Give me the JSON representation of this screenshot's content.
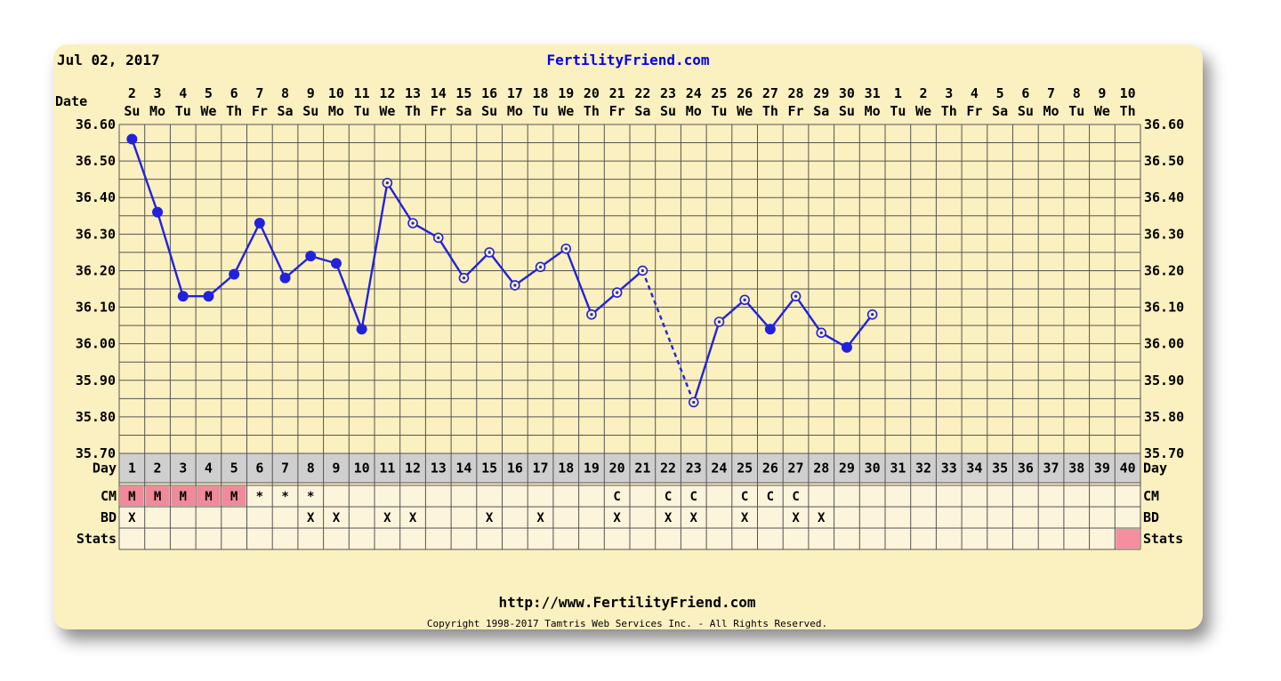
{
  "header": {
    "date": "Jul 02, 2017",
    "site": "FertilityFriend.com"
  },
  "footer": {
    "url": "http://www.FertilityFriend.com",
    "copyright": "Copyright 1998-2017 Tamtris Web Services Inc. - All Rights Reserved."
  },
  "colors": {
    "background": "#fbf0bf",
    "plot": "#fbf0bf",
    "grid": "#555555",
    "line": "#2222dd",
    "day_row": "#cfcfcf",
    "menses_cell": "#f08a9a",
    "stats_highlight": "#f58fa0",
    "row_cell": "#fdf4dc",
    "title": "#0000ee"
  },
  "chart_data": {
    "type": "line",
    "title": "",
    "row_labels": {
      "date": "Date",
      "day": "Day",
      "cm": "CM",
      "bd": "BD",
      "stats": "Stats"
    },
    "ylim": [
      35.7,
      36.6
    ],
    "yticks": [
      "36.60",
      "36.50",
      "36.40",
      "36.30",
      "36.20",
      "36.10",
      "36.00",
      "35.90",
      "35.80",
      "35.70"
    ],
    "date_numbers": [
      "2",
      "3",
      "4",
      "5",
      "6",
      "7",
      "8",
      "9",
      "10",
      "11",
      "12",
      "13",
      "14",
      "15",
      "16",
      "17",
      "18",
      "19",
      "20",
      "21",
      "22",
      "23",
      "24",
      "25",
      "26",
      "27",
      "28",
      "29",
      "30",
      "31",
      "1",
      "2",
      "3",
      "4",
      "5",
      "6",
      "7",
      "8",
      "9",
      "10"
    ],
    "weekdays": [
      "Su",
      "Mo",
      "Tu",
      "We",
      "Th",
      "Fr",
      "Sa",
      "Su",
      "Mo",
      "Tu",
      "We",
      "Th",
      "Fr",
      "Sa",
      "Su",
      "Mo",
      "Tu",
      "We",
      "Th",
      "Fr",
      "Sa",
      "Su",
      "Mo",
      "Tu",
      "We",
      "Th",
      "Fr",
      "Sa",
      "Su",
      "Mo",
      "Tu",
      "We",
      "Th",
      "Fr",
      "Sa",
      "Su",
      "Mo",
      "Tu",
      "We",
      "Th"
    ],
    "cycle_days": [
      "1",
      "2",
      "3",
      "4",
      "5",
      "6",
      "7",
      "8",
      "9",
      "10",
      "11",
      "12",
      "13",
      "14",
      "15",
      "16",
      "17",
      "18",
      "19",
      "20",
      "21",
      "22",
      "23",
      "24",
      "25",
      "26",
      "27",
      "28",
      "29",
      "30",
      "31",
      "32",
      "33",
      "34",
      "35",
      "36",
      "37",
      "38",
      "39",
      "40"
    ],
    "series": [
      {
        "cycle_day": [
          1,
          2,
          3,
          4,
          5,
          6,
          7,
          8,
          9,
          10,
          11,
          12,
          13,
          14,
          15,
          16,
          17,
          18,
          19,
          20,
          21,
          23,
          24,
          25,
          26,
          27,
          28,
          29,
          30
        ],
        "values": [
          36.56,
          36.36,
          36.13,
          36.13,
          36.19,
          36.33,
          36.18,
          36.24,
          36.22,
          36.04,
          36.44,
          36.33,
          36.29,
          36.18,
          36.25,
          36.16,
          36.21,
          36.26,
          36.08,
          36.14,
          36.2,
          35.84,
          36.06,
          36.12,
          36.04,
          36.13,
          36.03,
          35.99,
          36.08
        ],
        "open_marker": [
          false,
          false,
          false,
          false,
          false,
          false,
          false,
          false,
          false,
          false,
          true,
          true,
          true,
          true,
          true,
          true,
          true,
          true,
          true,
          true,
          true,
          true,
          true,
          true,
          false,
          true,
          true,
          false,
          true
        ]
      }
    ],
    "dashed_segment": {
      "from_cycle_day": 21,
      "to_cycle_day": 23
    },
    "cm": [
      "M",
      "M",
      "M",
      "M",
      "M",
      "*",
      "*",
      "*",
      "",
      "",
      "",
      "",
      "",
      "",
      "",
      "",
      "",
      "",
      "",
      "C",
      "",
      "C",
      "C",
      "",
      "C",
      "C",
      "C",
      "",
      "",
      "",
      "",
      "",
      "",
      "",
      "",
      "",
      "",
      "",
      "",
      ""
    ],
    "bd": [
      "X",
      "",
      "",
      "",
      "",
      "",
      "",
      "X",
      "X",
      "",
      "X",
      "X",
      "",
      "",
      "X",
      "",
      "X",
      "",
      "",
      "X",
      "",
      "X",
      "X",
      "",
      "X",
      "",
      "X",
      "X",
      "",
      "",
      "",
      "",
      "",
      "",
      "",
      "",
      "",
      "",
      "",
      ""
    ],
    "stats_highlight_day": 40
  }
}
